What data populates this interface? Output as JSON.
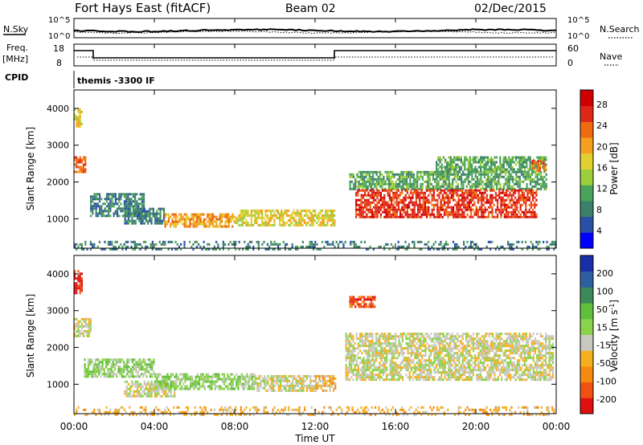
{
  "header": {
    "station": "Fort Hays East (fitACF)",
    "beam": "Beam 02",
    "date": "02/Dec/2015"
  },
  "panels": {
    "noise": {
      "left_label": "N.Sky",
      "right_label": "N.Search",
      "left_ticks": [
        "10^5",
        "10^0"
      ],
      "right_ticks": [
        "10^5",
        "10^0"
      ]
    },
    "freq": {
      "left_label_1": "Freq.",
      "left_label_2": "[MHz]",
      "right_label": "Nave",
      "left_ticks": [
        "18",
        "8"
      ],
      "right_ticks": [
        "60",
        "0"
      ]
    },
    "cpid": {
      "label": "CPID",
      "text": "themis -3300 IF"
    }
  },
  "chart_data": [
    {
      "type": "heatmap",
      "name": "power",
      "ylabel": "Slant Range [km]",
      "xlabel": "",
      "x_ticks": [
        "00:00",
        "04:00",
        "08:00",
        "12:00",
        "16:00",
        "20:00",
        "00:00"
      ],
      "x_range_hours": [
        0,
        24
      ],
      "y_ticks": [
        1000,
        2000,
        3000,
        4000
      ],
      "y_range_km": [
        200,
        4500
      ],
      "colorbar": {
        "label": "Power [dB]",
        "tick_labels": [
          "4",
          "8",
          "12",
          "16",
          "20",
          "24",
          "28"
        ],
        "colors": [
          "#0000ff",
          "#2a4fa8",
          "#3c7f6a",
          "#4aa35a",
          "#9ccf3a",
          "#e0d030",
          "#f5a020",
          "#f06a10",
          "#e02818",
          "#d00000"
        ]
      },
      "regions": [
        {
          "t0": 0.0,
          "t1": 0.6,
          "r0": 2300,
          "r1": 2700,
          "level": 7
        },
        {
          "t0": 0.0,
          "t1": 0.4,
          "r0": 3500,
          "r1": 4000,
          "level": 5
        },
        {
          "t0": 0.8,
          "t1": 3.5,
          "r0": 1100,
          "r1": 1700,
          "level": 2
        },
        {
          "t0": 2.5,
          "t1": 4.5,
          "r0": 900,
          "r1": 1300,
          "level": 2
        },
        {
          "t0": 4.5,
          "t1": 8.0,
          "r0": 800,
          "r1": 1150,
          "level": 6
        },
        {
          "t0": 8.0,
          "t1": 13.0,
          "r0": 800,
          "r1": 1250,
          "level": 5
        },
        {
          "t0": 13.7,
          "t1": 23.5,
          "r0": 1800,
          "r1": 2300,
          "level": 3
        },
        {
          "t0": 14.0,
          "t1": 23.0,
          "r0": 1050,
          "r1": 1800,
          "level": 8
        },
        {
          "t0": 18.0,
          "t1": 23.5,
          "r0": 2300,
          "r1": 2700,
          "level": 3
        },
        {
          "t0": 22.8,
          "t1": 23.5,
          "r0": 2300,
          "r1": 2600,
          "level": 7
        },
        {
          "t0": 0.0,
          "t1": 24.0,
          "r0": 200,
          "r1": 400,
          "level": 2
        }
      ]
    },
    {
      "type": "heatmap",
      "name": "velocity",
      "ylabel": "Slant Range [km]",
      "xlabel": "Time UT",
      "x_ticks": [
        "00:00",
        "04:00",
        "08:00",
        "12:00",
        "16:00",
        "20:00",
        "00:00"
      ],
      "x_range_hours": [
        0,
        24
      ],
      "y_ticks": [
        1000,
        2000,
        3000,
        4000
      ],
      "y_range_km": [
        200,
        4500
      ],
      "colorbar": {
        "label": "Velocity [m s^-1]",
        "tick_labels": [
          "200",
          "100",
          "50",
          "15",
          "-15",
          "-50",
          "-100",
          "-200"
        ],
        "colors": [
          "#1a2ea8",
          "#2e5fa0",
          "#3c8a5a",
          "#5fbf3a",
          "#8ad24a",
          "#c8c8c0",
          "#f5b020",
          "#f58a10",
          "#f05010",
          "#e01010"
        ]
      },
      "regions": [
        {
          "t0": 0.0,
          "t1": 0.4,
          "r0": 3500,
          "r1": 4100,
          "level": 9
        },
        {
          "t0": 0.0,
          "t1": 0.8,
          "r0": 2300,
          "r1": 2800,
          "level": 5
        },
        {
          "t0": 0.5,
          "t1": 4.0,
          "r0": 1200,
          "r1": 1700,
          "level": 4
        },
        {
          "t0": 2.5,
          "t1": 5.0,
          "r0": 700,
          "r1": 1100,
          "level": 5
        },
        {
          "t0": 4.0,
          "t1": 9.0,
          "r0": 900,
          "r1": 1300,
          "level": 4
        },
        {
          "t0": 9.0,
          "t1": 12.0,
          "r0": 850,
          "r1": 1250,
          "level": 5
        },
        {
          "t0": 12.0,
          "t1": 13.0,
          "r0": 800,
          "r1": 1250,
          "level": 6
        },
        {
          "t0": 13.5,
          "t1": 23.8,
          "r0": 1100,
          "r1": 2400,
          "level": 5
        },
        {
          "t0": 13.7,
          "t1": 15.0,
          "r0": 3100,
          "r1": 3400,
          "level": 8
        },
        {
          "t0": 0.0,
          "t1": 24.0,
          "r0": 200,
          "r1": 400,
          "level": 6
        }
      ]
    }
  ]
}
